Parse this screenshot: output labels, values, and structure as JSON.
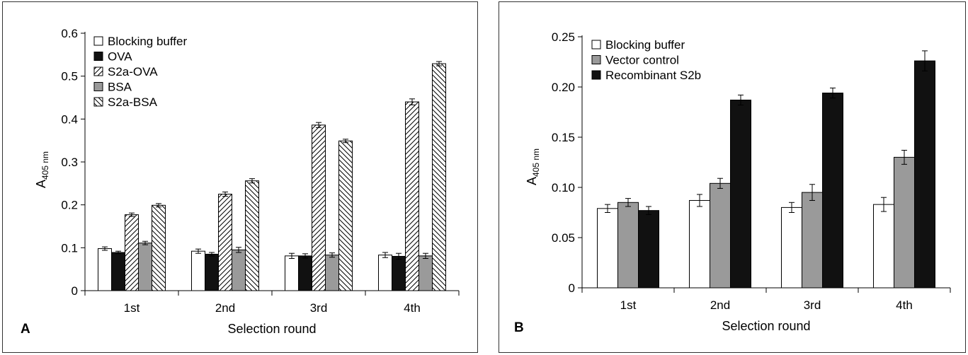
{
  "patterns": {
    "hatch_fwd": "hatch-forward",
    "hatch_back": "hatch-backward"
  },
  "chart_data": [
    {
      "type": "bar",
      "panel_label": "A",
      "categories": [
        "1st",
        "2nd",
        "3rd",
        "4th"
      ],
      "xlabel": "Selection round",
      "ylabel_main": "A",
      "ylabel_sub": "405 nm",
      "ylim": [
        0,
        0.6
      ],
      "yticks": [
        "0",
        "0.1",
        "0.2",
        "0.3",
        "0.4",
        "0.5",
        "0.6"
      ],
      "grid": false,
      "legend_position": "top-left",
      "series": [
        {
          "name": "Blocking buffer",
          "fill": "#ffffff",
          "pattern": "",
          "values": [
            0.098,
            0.092,
            0.081,
            0.083
          ],
          "errors": [
            0.004,
            0.005,
            0.006,
            0.006
          ]
        },
        {
          "name": "OVA",
          "fill": "#111111",
          "pattern": "",
          "values": [
            0.089,
            0.085,
            0.081,
            0.08
          ],
          "errors": [
            0.003,
            0.004,
            0.005,
            0.007
          ]
        },
        {
          "name": "S2a-OVA",
          "fill": "#ffffff",
          "pattern": "hatch_fwd",
          "values": [
            0.177,
            0.225,
            0.386,
            0.44
          ],
          "errors": [
            0.004,
            0.005,
            0.006,
            0.007
          ]
        },
        {
          "name": "BSA",
          "fill": "#9a9a9a",
          "pattern": "",
          "values": [
            0.111,
            0.095,
            0.083,
            0.081
          ],
          "errors": [
            0.004,
            0.006,
            0.005,
            0.006
          ]
        },
        {
          "name": "S2a-BSA",
          "fill": "#ffffff",
          "pattern": "hatch_back",
          "values": [
            0.199,
            0.256,
            0.349,
            0.529
          ],
          "errors": [
            0.004,
            0.005,
            0.004,
            0.005
          ]
        }
      ]
    },
    {
      "type": "bar",
      "panel_label": "B",
      "categories": [
        "1st",
        "2nd",
        "3rd",
        "4th"
      ],
      "xlabel": "Selection round",
      "ylabel_main": "A",
      "ylabel_sub": "405 nm",
      "ylim": [
        0,
        0.25
      ],
      "yticks": [
        "0",
        "0.05",
        "0.10",
        "0.15",
        "0.20",
        "0.25"
      ],
      "grid": false,
      "legend_position": "top-left",
      "series": [
        {
          "name": "Blocking buffer",
          "fill": "#ffffff",
          "pattern": "",
          "values": [
            0.079,
            0.087,
            0.08,
            0.083
          ],
          "errors": [
            0.004,
            0.006,
            0.005,
            0.007
          ]
        },
        {
          "name": "Vector control",
          "fill": "#9a9a9a",
          "pattern": "",
          "values": [
            0.085,
            0.104,
            0.095,
            0.13
          ],
          "errors": [
            0.004,
            0.005,
            0.008,
            0.007
          ]
        },
        {
          "name": "Recombinant S2b",
          "fill": "#111111",
          "pattern": "",
          "values": [
            0.077,
            0.187,
            0.194,
            0.226
          ],
          "errors": [
            0.004,
            0.005,
            0.005,
            0.01
          ]
        }
      ]
    }
  ]
}
